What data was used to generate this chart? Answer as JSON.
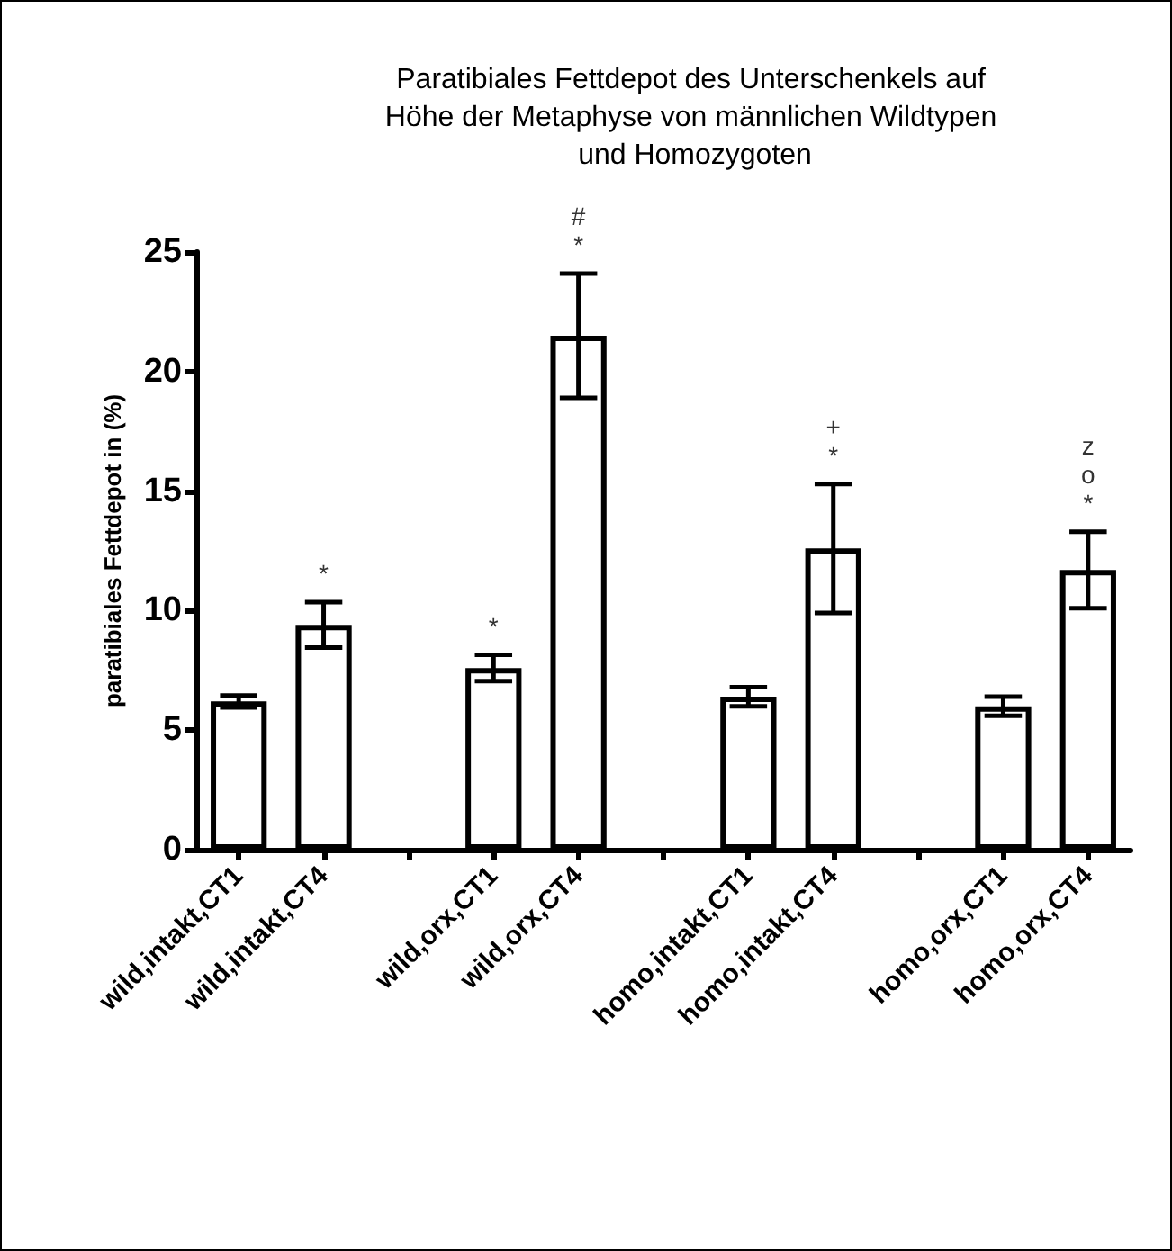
{
  "chart_data": {
    "type": "bar",
    "title": "Paratibiales Fettdepot des Unterschenkels auf Höhe der Metaphyse von männlichen Wildtypen und Homozygoten",
    "ylabel": "paratibiales Fettdepot in (%)",
    "categories": [
      "wild,intakt,CT1",
      "wild,intakt,CT4",
      null,
      "wild,orx,CT1",
      "wild,orx,CT4",
      null,
      "homo,intakt,CT1",
      "homo,intakt,CT4",
      null,
      "homo,orx,CT1",
      "homo,orx,CT4"
    ],
    "values": [
      6.2,
      9.4,
      null,
      7.6,
      21.5,
      null,
      6.4,
      12.6,
      null,
      6.0,
      11.7
    ],
    "errors": [
      0.25,
      0.95,
      null,
      0.55,
      2.6,
      null,
      0.4,
      2.7,
      null,
      0.4,
      1.6
    ],
    "color": "#ffffff",
    "ylim": [
      0,
      25
    ],
    "yticks": [
      0,
      5,
      10,
      15,
      20,
      25
    ],
    "grid": false,
    "annotations": [
      {
        "text": "*",
        "x": "wild,intakt,CT4",
        "y": 10.35
      },
      {
        "text": "*",
        "x": "wild,orx,CT1",
        "y": 8.15
      },
      {
        "text": "*",
        "x": "wild,orx,CT4",
        "y": 24.1
      },
      {
        "text": "#",
        "x": "wild,orx,CT4",
        "y": 24.1
      },
      {
        "text": "*",
        "x": "homo,intakt,CT4",
        "y": 15.3
      },
      {
        "text": "+",
        "x": "homo,intakt,CT4",
        "y": 15.3
      },
      {
        "text": "*",
        "x": "homo,orx,CT4",
        "y": 13.3
      },
      {
        "text": "o",
        "x": "homo,orx,CT4",
        "y": 13.3
      },
      {
        "text": "z",
        "x": "homo,orx,CT4",
        "y": 13.3
      }
    ]
  }
}
